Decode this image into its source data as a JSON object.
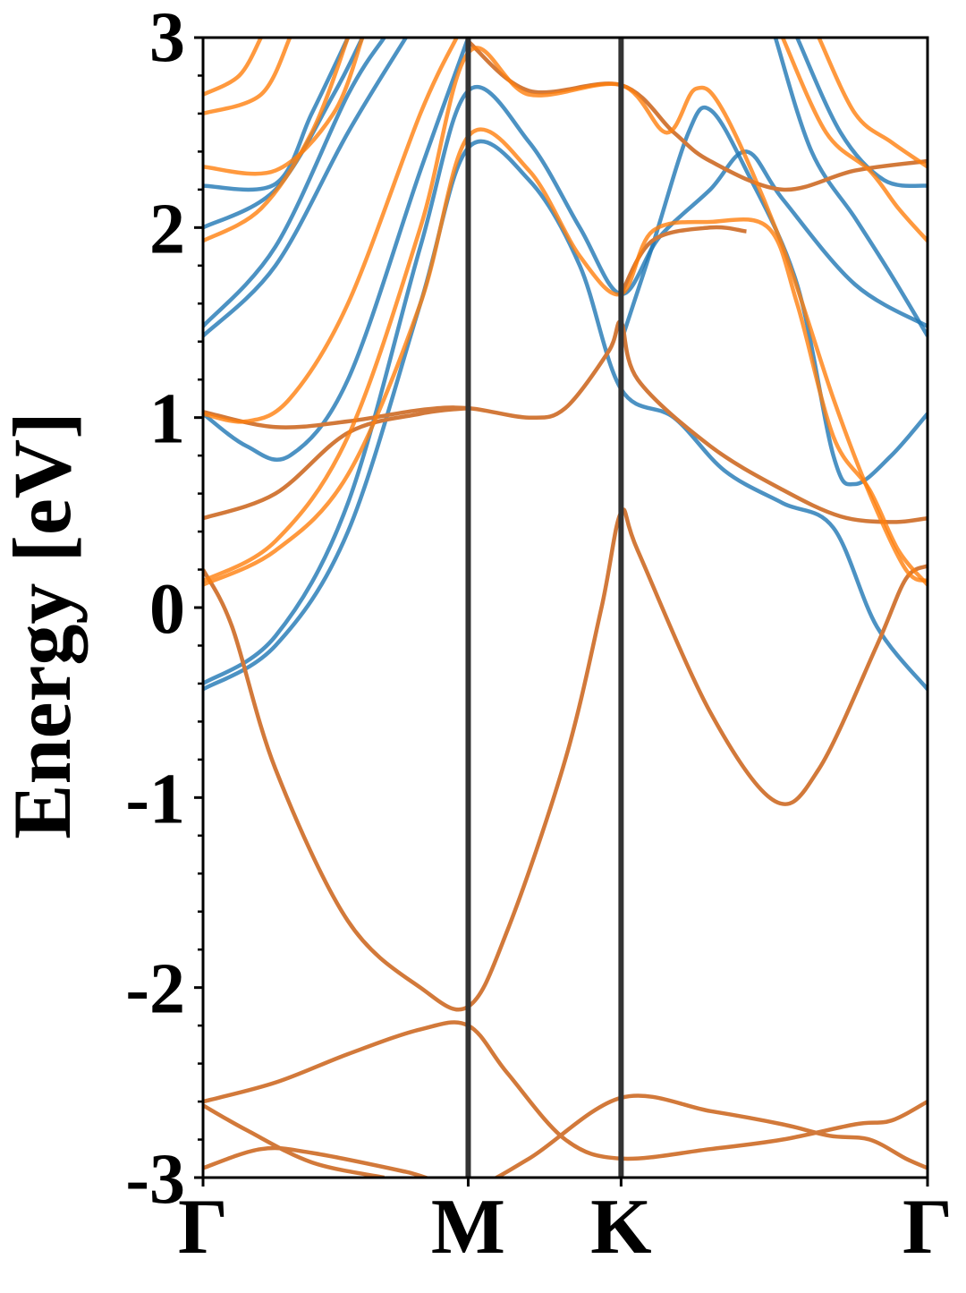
{
  "chart_data": {
    "type": "line",
    "title": "",
    "xlabel": "",
    "ylabel": "Energy [eV]",
    "ylim": [
      -3,
      3
    ],
    "yticks": [
      {
        "value": 3,
        "label": "3"
      },
      {
        "value": 2,
        "label": "2"
      },
      {
        "value": 1,
        "label": "1"
      },
      {
        "value": 0,
        "label": "0"
      },
      {
        "value": -1,
        "label": "-1"
      },
      {
        "value": -2,
        "label": "-2"
      },
      {
        "value": -3,
        "label": "-3"
      }
    ],
    "minor_ytick_step": 0.2,
    "xlim": [
      0,
      1
    ],
    "high_symmetry_points": [
      {
        "label": "Γ",
        "k": 0.0
      },
      {
        "label": "M",
        "k": 0.366
      },
      {
        "label": "K",
        "k": 0.577
      },
      {
        "label": "Γ",
        "k": 1.0
      }
    ],
    "grid": false,
    "legend": "none",
    "colors": {
      "blue": "#1f77b4",
      "orange": "#ff7f0e",
      "overlap": "#d2793a",
      "vline": "#333333"
    },
    "series": [
      {
        "color": "overlap",
        "points": [
          [
            0.0,
            0.2
          ],
          [
            0.04,
            -0.1
          ],
          [
            0.1,
            -0.85
          ],
          [
            0.2,
            -1.65
          ],
          [
            0.3,
            -2.0
          ],
          [
            0.366,
            -2.1
          ],
          [
            0.42,
            -1.7
          ],
          [
            0.5,
            -0.8
          ],
          [
            0.55,
            0.0
          ],
          [
            0.577,
            0.5
          ],
          [
            0.6,
            0.3
          ],
          [
            0.7,
            -0.55
          ],
          [
            0.79,
            -1.02
          ],
          [
            0.85,
            -0.85
          ],
          [
            0.93,
            -0.2
          ],
          [
            0.97,
            0.15
          ],
          [
            1.0,
            0.22
          ]
        ]
      },
      {
        "color": "overlap",
        "points": [
          [
            0.0,
            -2.6
          ],
          [
            0.1,
            -2.5
          ],
          [
            0.2,
            -2.35
          ],
          [
            0.3,
            -2.22
          ],
          [
            0.366,
            -2.2
          ],
          [
            0.42,
            -2.45
          ],
          [
            0.5,
            -2.8
          ],
          [
            0.577,
            -2.9
          ],
          [
            0.7,
            -2.85
          ],
          [
            0.8,
            -2.8
          ],
          [
            0.9,
            -2.72
          ],
          [
            0.95,
            -2.7
          ],
          [
            1.0,
            -2.6
          ]
        ]
      },
      {
        "color": "overlap",
        "points": [
          [
            0.0,
            -2.62
          ],
          [
            0.06,
            -2.75
          ],
          [
            0.15,
            -2.92
          ],
          [
            0.25,
            -3.0
          ]
        ]
      },
      {
        "color": "overlap",
        "points": [
          [
            0.0,
            -2.95
          ],
          [
            0.08,
            -2.85
          ],
          [
            0.15,
            -2.87
          ],
          [
            0.28,
            -2.97
          ],
          [
            0.366,
            -3.05
          ],
          [
            0.45,
            -2.9
          ],
          [
            0.577,
            -2.58
          ],
          [
            0.7,
            -2.65
          ],
          [
            0.8,
            -2.72
          ],
          [
            0.865,
            -2.78
          ],
          [
            0.92,
            -2.8
          ],
          [
            0.97,
            -2.9
          ],
          [
            1.0,
            -2.95
          ]
        ]
      },
      {
        "color": "overlap",
        "points": [
          [
            0.0,
            1.03
          ],
          [
            0.1,
            0.95
          ],
          [
            0.2,
            0.98
          ],
          [
            0.3,
            1.04
          ],
          [
            0.366,
            1.05
          ],
          [
            0.45,
            1.0
          ],
          [
            0.5,
            1.05
          ],
          [
            0.56,
            1.35
          ],
          [
            0.577,
            1.5
          ],
          [
            0.6,
            1.2
          ],
          [
            0.7,
            0.85
          ],
          [
            0.8,
            0.62
          ],
          [
            0.88,
            0.48
          ],
          [
            0.95,
            0.45
          ],
          [
            1.0,
            0.47
          ]
        ]
      },
      {
        "color": "overlap",
        "points": [
          [
            0.0,
            0.47
          ],
          [
            0.1,
            0.6
          ],
          [
            0.2,
            0.92
          ],
          [
            0.3,
            1.02
          ],
          [
            0.366,
            1.05
          ]
        ]
      },
      {
        "color": "overlap",
        "points": [
          [
            0.366,
            2.98
          ],
          [
            0.45,
            2.72
          ],
          [
            0.577,
            2.75
          ],
          [
            0.65,
            2.5
          ],
          [
            0.7,
            2.35
          ],
          [
            0.8,
            2.2
          ],
          [
            0.9,
            2.3
          ],
          [
            1.0,
            2.35
          ]
        ]
      },
      {
        "color": "overlap",
        "points": [
          [
            0.577,
            1.65
          ],
          [
            0.62,
            1.93
          ],
          [
            0.7,
            2.0
          ],
          [
            0.75,
            1.98
          ]
        ]
      },
      {
        "color": "blue",
        "points": [
          [
            0.0,
            -0.43
          ],
          [
            0.1,
            -0.2
          ],
          [
            0.2,
            0.4
          ],
          [
            0.3,
            1.6
          ],
          [
            0.366,
            2.42
          ],
          [
            0.45,
            2.25
          ],
          [
            0.52,
            1.8
          ],
          [
            0.577,
            1.15
          ],
          [
            0.65,
            1.0
          ],
          [
            0.72,
            0.72
          ],
          [
            0.8,
            0.55
          ],
          [
            0.87,
            0.42
          ],
          [
            0.93,
            -0.1
          ],
          [
            1.0,
            -0.43
          ]
        ]
      },
      {
        "color": "blue",
        "points": [
          [
            0.0,
            -0.4
          ],
          [
            0.1,
            -0.15
          ],
          [
            0.2,
            0.55
          ],
          [
            0.3,
            1.9
          ],
          [
            0.366,
            2.72
          ],
          [
            0.45,
            2.45
          ],
          [
            0.52,
            2.0
          ],
          [
            0.577,
            1.65
          ],
          [
            0.63,
            1.95
          ],
          [
            0.7,
            2.2
          ],
          [
            0.75,
            2.4
          ],
          [
            0.8,
            2.15
          ],
          [
            0.9,
            1.7
          ],
          [
            1.0,
            1.48
          ]
        ]
      },
      {
        "color": "blue",
        "points": [
          [
            0.0,
            1.43
          ],
          [
            0.1,
            1.8
          ],
          [
            0.2,
            2.5
          ],
          [
            0.28,
            3.0
          ]
        ]
      },
      {
        "color": "blue",
        "points": [
          [
            0.0,
            1.48
          ],
          [
            0.1,
            1.9
          ],
          [
            0.2,
            2.7
          ],
          [
            0.25,
            3.0
          ]
        ]
      },
      {
        "color": "blue",
        "points": [
          [
            0.0,
            2.0
          ],
          [
            0.1,
            2.2
          ],
          [
            0.18,
            2.7
          ],
          [
            0.22,
            3.0
          ]
        ]
      },
      {
        "color": "blue",
        "points": [
          [
            0.0,
            2.22
          ],
          [
            0.1,
            2.23
          ],
          [
            0.15,
            2.6
          ],
          [
            0.2,
            3.0
          ]
        ]
      },
      {
        "color": "blue",
        "points": [
          [
            0.0,
            1.02
          ],
          [
            0.06,
            0.85
          ],
          [
            0.12,
            0.8
          ],
          [
            0.2,
            1.2
          ],
          [
            0.3,
            2.3
          ],
          [
            0.366,
            3.0
          ]
        ]
      },
      {
        "color": "blue",
        "points": [
          [
            0.577,
            1.4
          ],
          [
            0.62,
            1.9
          ],
          [
            0.67,
            2.5
          ],
          [
            0.7,
            2.62
          ],
          [
            0.75,
            2.3
          ],
          [
            0.82,
            1.7
          ],
          [
            0.87,
            0.8
          ],
          [
            0.9,
            0.65
          ],
          [
            0.95,
            0.8
          ],
          [
            1.0,
            1.02
          ]
        ]
      },
      {
        "color": "blue",
        "points": [
          [
            0.79,
            3.0
          ],
          [
            0.84,
            2.4
          ],
          [
            0.9,
            2.05
          ],
          [
            0.95,
            1.75
          ],
          [
            1.0,
            1.43
          ]
        ]
      },
      {
        "color": "blue",
        "points": [
          [
            0.82,
            3.0
          ],
          [
            0.88,
            2.5
          ],
          [
            0.94,
            2.25
          ],
          [
            1.0,
            2.22
          ]
        ]
      },
      {
        "color": "orange",
        "points": [
          [
            0.0,
            0.12
          ],
          [
            0.1,
            0.3
          ],
          [
            0.2,
            0.7
          ],
          [
            0.3,
            1.6
          ],
          [
            0.366,
            2.48
          ],
          [
            0.45,
            2.3
          ],
          [
            0.52,
            1.85
          ],
          [
            0.577,
            1.65
          ],
          [
            0.62,
            1.98
          ],
          [
            0.7,
            2.03
          ],
          [
            0.78,
            2.0
          ],
          [
            0.82,
            1.6
          ],
          [
            0.87,
            0.9
          ],
          [
            0.92,
            0.62
          ],
          [
            0.96,
            0.3
          ],
          [
            1.0,
            0.12
          ]
        ]
      },
      {
        "color": "orange",
        "points": [
          [
            0.0,
            0.14
          ],
          [
            0.1,
            0.35
          ],
          [
            0.2,
            0.9
          ],
          [
            0.3,
            2.0
          ],
          [
            0.366,
            2.92
          ],
          [
            0.45,
            2.7
          ],
          [
            0.577,
            2.75
          ],
          [
            0.64,
            2.5
          ],
          [
            0.68,
            2.73
          ],
          [
            0.72,
            2.6
          ],
          [
            0.8,
            1.9
          ],
          [
            0.87,
            1.1
          ],
          [
            0.92,
            0.6
          ],
          [
            0.97,
            0.2
          ],
          [
            1.0,
            0.14
          ]
        ]
      },
      {
        "color": "orange",
        "points": [
          [
            0.0,
            1.02
          ],
          [
            0.06,
            0.98
          ],
          [
            0.12,
            1.1
          ],
          [
            0.2,
            1.6
          ],
          [
            0.3,
            2.6
          ],
          [
            0.35,
            3.0
          ]
        ]
      },
      {
        "color": "orange",
        "points": [
          [
            0.0,
            1.93
          ],
          [
            0.08,
            2.1
          ],
          [
            0.15,
            2.5
          ],
          [
            0.2,
            3.0
          ]
        ]
      },
      {
        "color": "orange",
        "points": [
          [
            0.0,
            2.32
          ],
          [
            0.1,
            2.3
          ],
          [
            0.18,
            2.6
          ],
          [
            0.22,
            3.0
          ]
        ]
      },
      {
        "color": "orange",
        "points": [
          [
            0.0,
            2.6
          ],
          [
            0.08,
            2.7
          ],
          [
            0.12,
            3.0
          ]
        ]
      },
      {
        "color": "orange",
        "points": [
          [
            0.0,
            2.7
          ],
          [
            0.05,
            2.8
          ],
          [
            0.08,
            3.0
          ]
        ]
      },
      {
        "color": "orange",
        "points": [
          [
            0.8,
            3.0
          ],
          [
            0.86,
            2.5
          ],
          [
            0.92,
            2.3
          ],
          [
            0.96,
            2.1
          ],
          [
            1.0,
            1.93
          ]
        ]
      },
      {
        "color": "orange",
        "points": [
          [
            0.85,
            3.0
          ],
          [
            0.9,
            2.6
          ],
          [
            0.95,
            2.45
          ],
          [
            1.0,
            2.32
          ]
        ]
      }
    ]
  }
}
